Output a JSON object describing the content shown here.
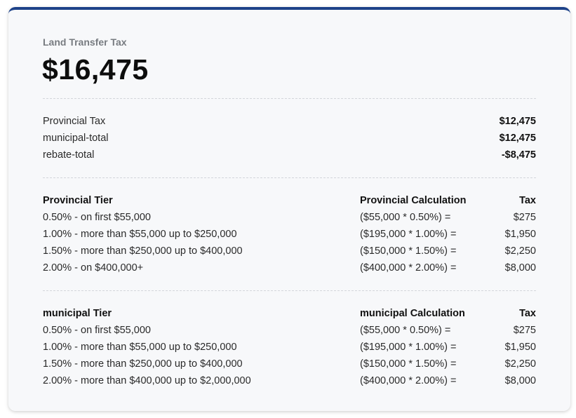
{
  "header": {
    "label": "Land Transfer Tax",
    "total": "$16,475"
  },
  "summary": [
    {
      "label": "Provincial Tax",
      "value": "$12,475"
    },
    {
      "label": "municipal-total",
      "value": "$12,475"
    },
    {
      "label": "rebate-total",
      "value": "-$8,475"
    }
  ],
  "provincial": {
    "headers": {
      "tier": "Provincial Tier",
      "calculation": "Provincial Calculation",
      "tax": "Tax"
    },
    "rows": [
      {
        "tier": "0.50% - on first $55,000",
        "calculation": "($55,000 * 0.50%) =",
        "tax": "$275"
      },
      {
        "tier": "1.00% - more than $55,000 up to $250,000",
        "calculation": "($195,000 * 1.00%) =",
        "tax": "$1,950"
      },
      {
        "tier": "1.50% - more than $250,000 up to $400,000",
        "calculation": "($150,000 * 1.50%) =",
        "tax": "$2,250"
      },
      {
        "tier": "2.00% - on $400,000+",
        "calculation": "($400,000 * 2.00%) =",
        "tax": "$8,000"
      }
    ]
  },
  "municipal": {
    "headers": {
      "tier": "municipal Tier",
      "calculation": "municipal Calculation",
      "tax": "Tax"
    },
    "rows": [
      {
        "tier": "0.50% - on first $55,000",
        "calculation": "($55,000 * 0.50%) =",
        "tax": "$275"
      },
      {
        "tier": "1.00% - more than $55,000 up to $250,000",
        "calculation": "($195,000 * 1.00%) =",
        "tax": "$1,950"
      },
      {
        "tier": "1.50% - more than $250,000 up to $400,000",
        "calculation": "($150,000 * 1.50%) =",
        "tax": "$2,250"
      },
      {
        "tier": "2.00% - more than $400,000 up to $2,000,000",
        "calculation": "($400,000 * 2.00%) =",
        "tax": "$8,000"
      }
    ]
  },
  "colors": {
    "accent": "#1d4289",
    "card_background": "#f7f8fa",
    "label_gray": "#777b80"
  }
}
